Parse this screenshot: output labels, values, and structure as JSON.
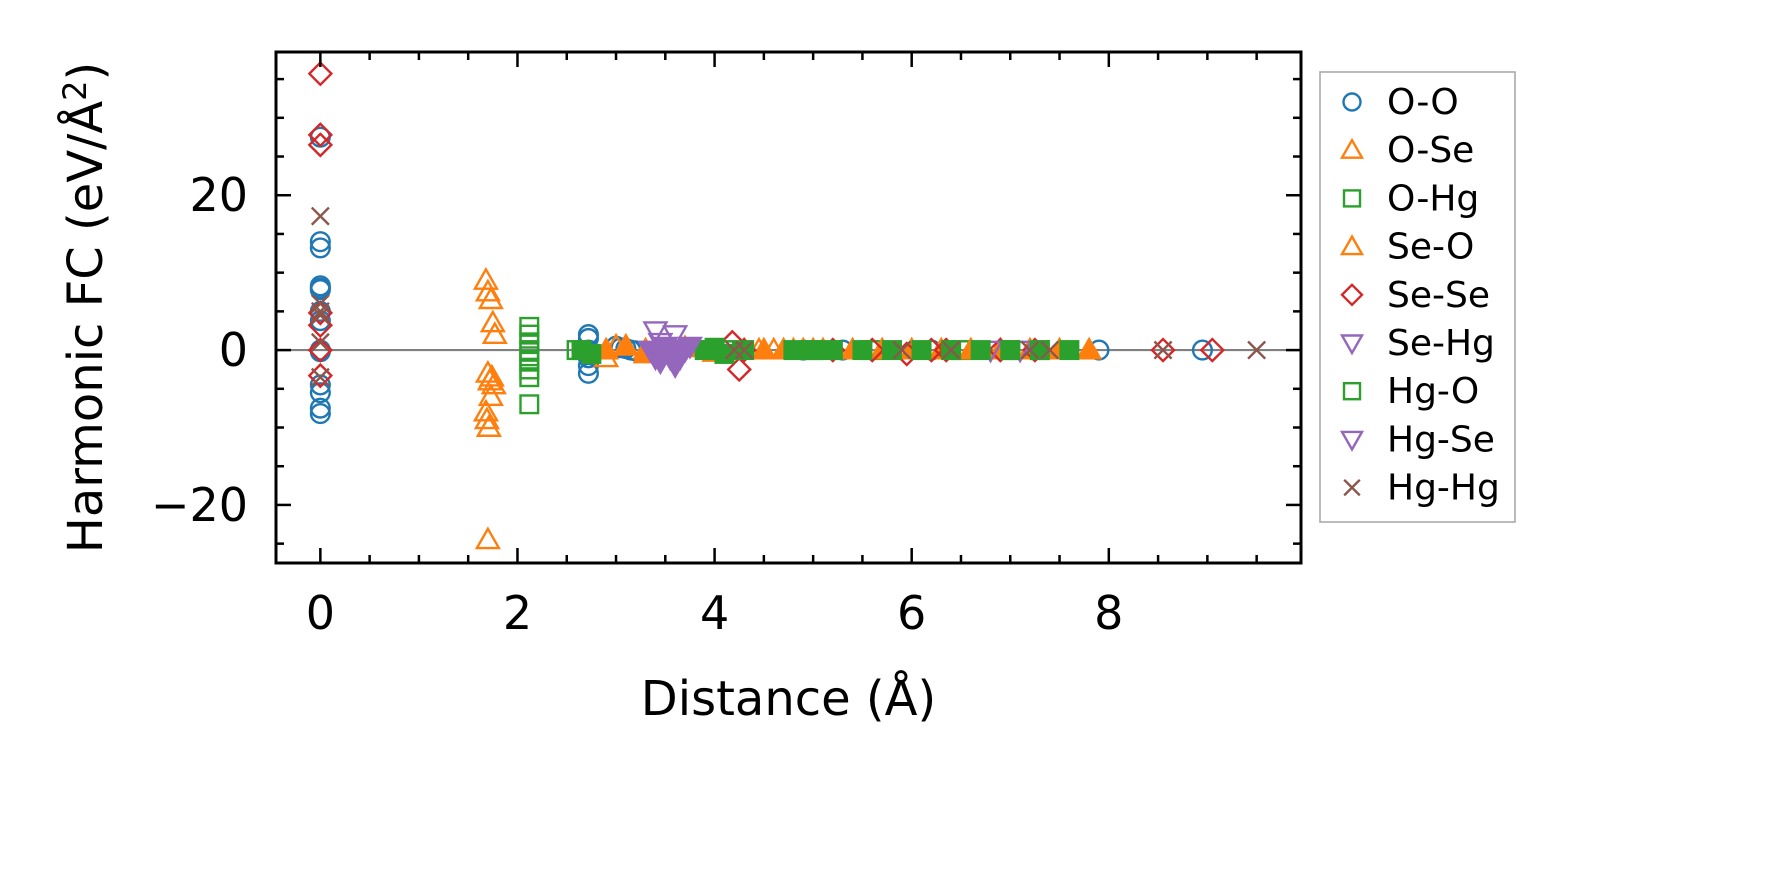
{
  "chart_data": {
    "type": "scatter",
    "title": "",
    "xlabel": "Distance (Å)",
    "ylabel_main": "Harmonic FC (eV/Å",
    "ylabel_sup": "2",
    "ylabel_close": ")",
    "xlim": [
      -0.45,
      9.95
    ],
    "ylim": [
      -27.5,
      38.5
    ],
    "xticks": [
      0,
      2,
      4,
      6,
      8
    ],
    "xtick_labels": [
      "0",
      "2",
      "4",
      "6",
      "8"
    ],
    "yticks": [
      -20,
      0,
      20
    ],
    "ytick_labels": [
      "−20",
      "0",
      "20"
    ],
    "zero_line": true,
    "grid": false,
    "legend_position": "outside-right",
    "series": [
      {
        "name": "O-O",
        "marker": "circle",
        "color": "#1f77b4",
        "filled": false,
        "x": [
          0,
          0,
          0,
          0,
          0,
          0,
          0,
          0,
          0,
          0,
          0,
          0,
          0,
          0,
          2.72,
          2.72,
          2.72,
          2.72,
          2.72,
          2.72,
          3.0,
          3.05,
          3.1,
          3.15,
          3.2,
          4.9,
          5.3,
          6.2,
          7.9,
          8.95
        ],
        "y": [
          27.5,
          14,
          13.2,
          8.3,
          8,
          7.8,
          5,
          3.8,
          0,
          -0.2,
          -4.5,
          -5.5,
          -7.5,
          -8.2,
          2,
          1.5,
          0,
          -1,
          -2,
          -3,
          0.5,
          0.3,
          0.2,
          0,
          -0.1,
          0,
          0,
          0,
          0,
          0
        ]
      },
      {
        "name": "O-Se",
        "marker": "triangle-up",
        "color": "#ff7f0e",
        "filled": false,
        "x": [
          1.68,
          1.7,
          1.73,
          1.75,
          1.77,
          1.7,
          1.72,
          1.74,
          1.68,
          1.69,
          1.71,
          1.73,
          1.76,
          1.7,
          2.9,
          3.0,
          3.3,
          3.6,
          4.45,
          4.6,
          4.8,
          5.0
        ],
        "y": [
          9,
          7.5,
          6.5,
          3.5,
          2,
          -3,
          -4,
          -3.5,
          -8,
          -9,
          -10,
          -6,
          -4.5,
          -24.5,
          -1,
          0.5,
          0,
          0,
          0,
          0,
          0,
          0
        ]
      },
      {
        "name": "O-Hg",
        "marker": "square",
        "color": "#2ca02c",
        "filled": false,
        "x": [
          2.12,
          2.12,
          2.12,
          2.12,
          2.12,
          2.12,
          2.12,
          2.12,
          2.12,
          2.6,
          3.95,
          4.1,
          5.0,
          5.6,
          6.5,
          7.0,
          7.3
        ],
        "y": [
          3,
          2,
          1,
          0,
          -0.8,
          -1.5,
          -2.5,
          -3.5,
          -7,
          0,
          0,
          0,
          0,
          0,
          0,
          0,
          0
        ]
      },
      {
        "name": "Se-O",
        "marker": "triangle-up",
        "color": "#ff7f0e",
        "filled": true,
        "x": [
          2.9,
          3.1,
          3.3,
          3.5,
          3.7,
          4.0,
          4.3,
          4.5,
          4.7,
          4.9,
          5.1,
          5.4,
          5.7,
          6.0,
          6.3,
          6.6,
          6.9,
          7.2,
          7.5,
          7.8
        ],
        "y": [
          0,
          0.5,
          -0.5,
          0,
          0.3,
          -0.3,
          0,
          0,
          0,
          0,
          0,
          0,
          0,
          0,
          0,
          0,
          0,
          0,
          0,
          0
        ]
      },
      {
        "name": "Se-Se",
        "marker": "diamond",
        "color": "#d62728",
        "filled": false,
        "x": [
          0,
          0,
          0,
          0,
          0,
          0,
          0,
          4.18,
          4.25,
          4.3,
          5.2,
          5.6,
          5.95,
          6.2,
          6.35,
          6.9,
          7.25,
          8.55,
          9.05
        ],
        "y": [
          35.7,
          27.8,
          26.5,
          4.8,
          3.2,
          -3.3,
          0,
          1,
          -2.5,
          0,
          0,
          0,
          -0.5,
          0,
          0,
          0,
          0,
          0,
          0
        ]
      },
      {
        "name": "Se-Hg",
        "marker": "triangle-down",
        "color": "#9467bd",
        "filled": false,
        "x": [
          3.4,
          3.45,
          3.5,
          3.55,
          3.6,
          3.65,
          6.8,
          7.1
        ],
        "y": [
          2.5,
          1,
          0,
          -1,
          2,
          0,
          0,
          0
        ]
      },
      {
        "name": "Hg-O",
        "marker": "square",
        "color": "#2ca02c",
        "filled": true,
        "x": [
          2.65,
          2.75,
          3.9,
          4.0,
          4.1,
          4.3,
          4.8,
          5.0,
          5.2,
          5.5,
          5.8,
          6.1,
          6.4,
          6.7,
          7.0,
          7.3,
          7.6
        ],
        "y": [
          0,
          -0.5,
          0,
          0.3,
          -0.5,
          0,
          0,
          0,
          0,
          0,
          0,
          0,
          0,
          0,
          0,
          0,
          0
        ]
      },
      {
        "name": "Hg-Se",
        "marker": "triangle-down",
        "color": "#9467bd",
        "filled": true,
        "x": [
          3.35,
          3.4,
          3.45,
          3.5,
          3.55,
          3.6,
          3.65,
          3.7,
          3.75
        ],
        "y": [
          0,
          -1,
          -1.5,
          0.5,
          0,
          -2,
          -1,
          0,
          0.5
        ]
      },
      {
        "name": "Hg-Hg",
        "marker": "x",
        "color": "#8c564b",
        "filled": false,
        "x": [
          0,
          0,
          0,
          0,
          0,
          0,
          4.2,
          4.3,
          5.9,
          6.4,
          7.2,
          7.4,
          8.55,
          9.5
        ],
        "y": [
          17.3,
          6,
          5,
          4.5,
          -3.5,
          1,
          0,
          0,
          0,
          0,
          0,
          0,
          0,
          0
        ]
      }
    ]
  }
}
